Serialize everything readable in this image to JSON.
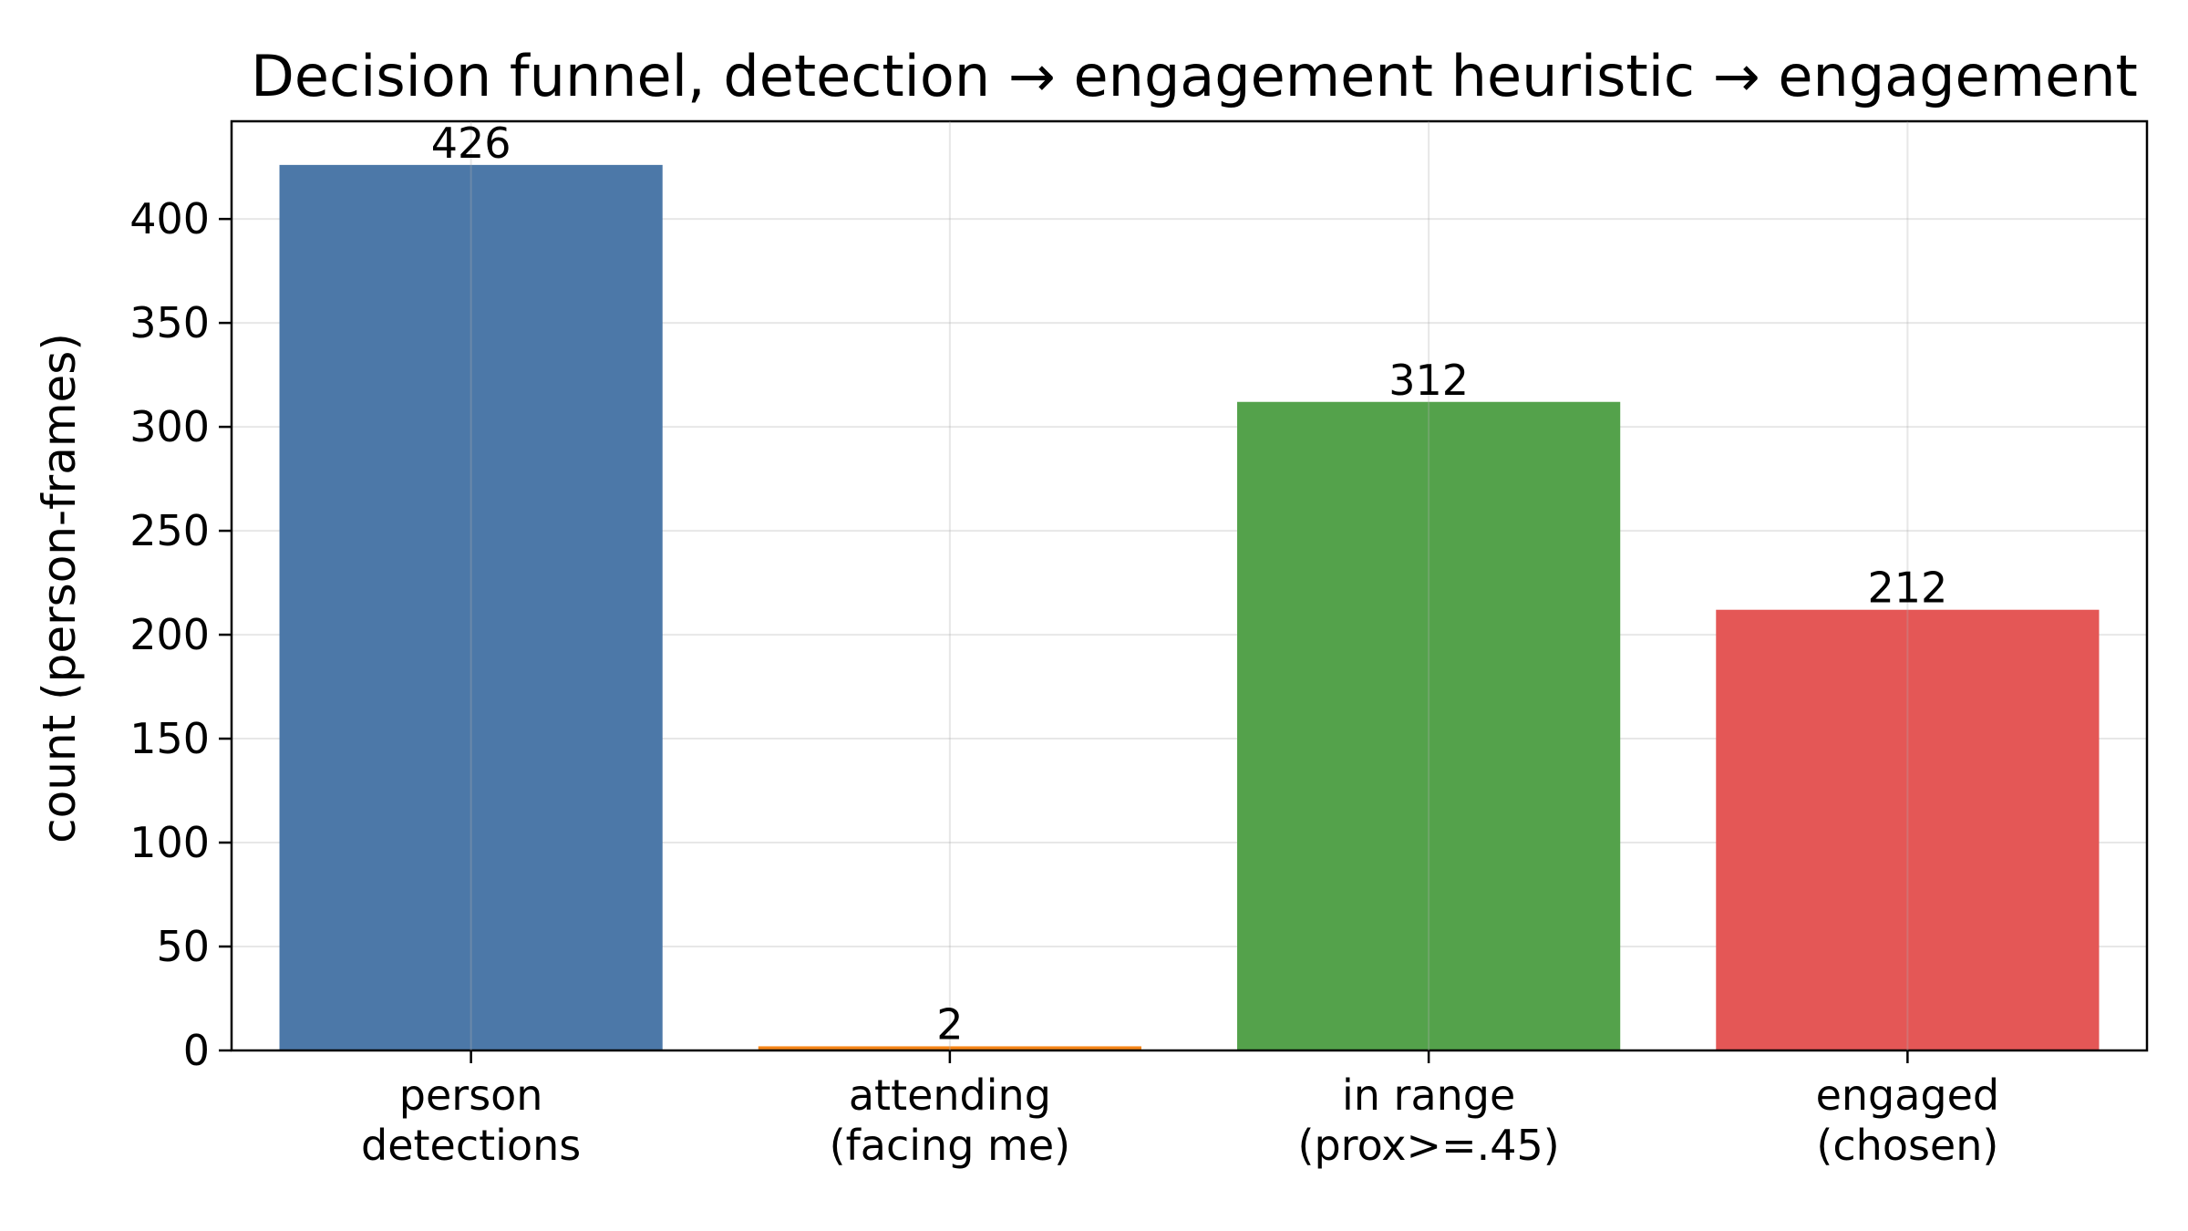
{
  "chart_data": {
    "type": "bar",
    "title": "Decision funnel, detection → engagement heuristic → engagement",
    "xlabel": "",
    "ylabel": "count (person-frames)",
    "categories": [
      [
        "person",
        "detections"
      ],
      [
        "attending",
        "(facing me)"
      ],
      [
        "in range",
        "(prox>=.45)"
      ],
      [
        "engaged",
        "(chosen)"
      ]
    ],
    "values": [
      426,
      2,
      312,
      212
    ],
    "data_labels": [
      "426",
      "2",
      "312",
      "212"
    ],
    "colors": [
      "#4c78a8",
      "#f58518",
      "#54a24b",
      "#e45756"
    ],
    "ylim": [
      0,
      447
    ],
    "yticks": [
      0,
      50,
      100,
      150,
      200,
      250,
      300,
      350,
      400
    ],
    "grid": true,
    "legend": "none"
  }
}
